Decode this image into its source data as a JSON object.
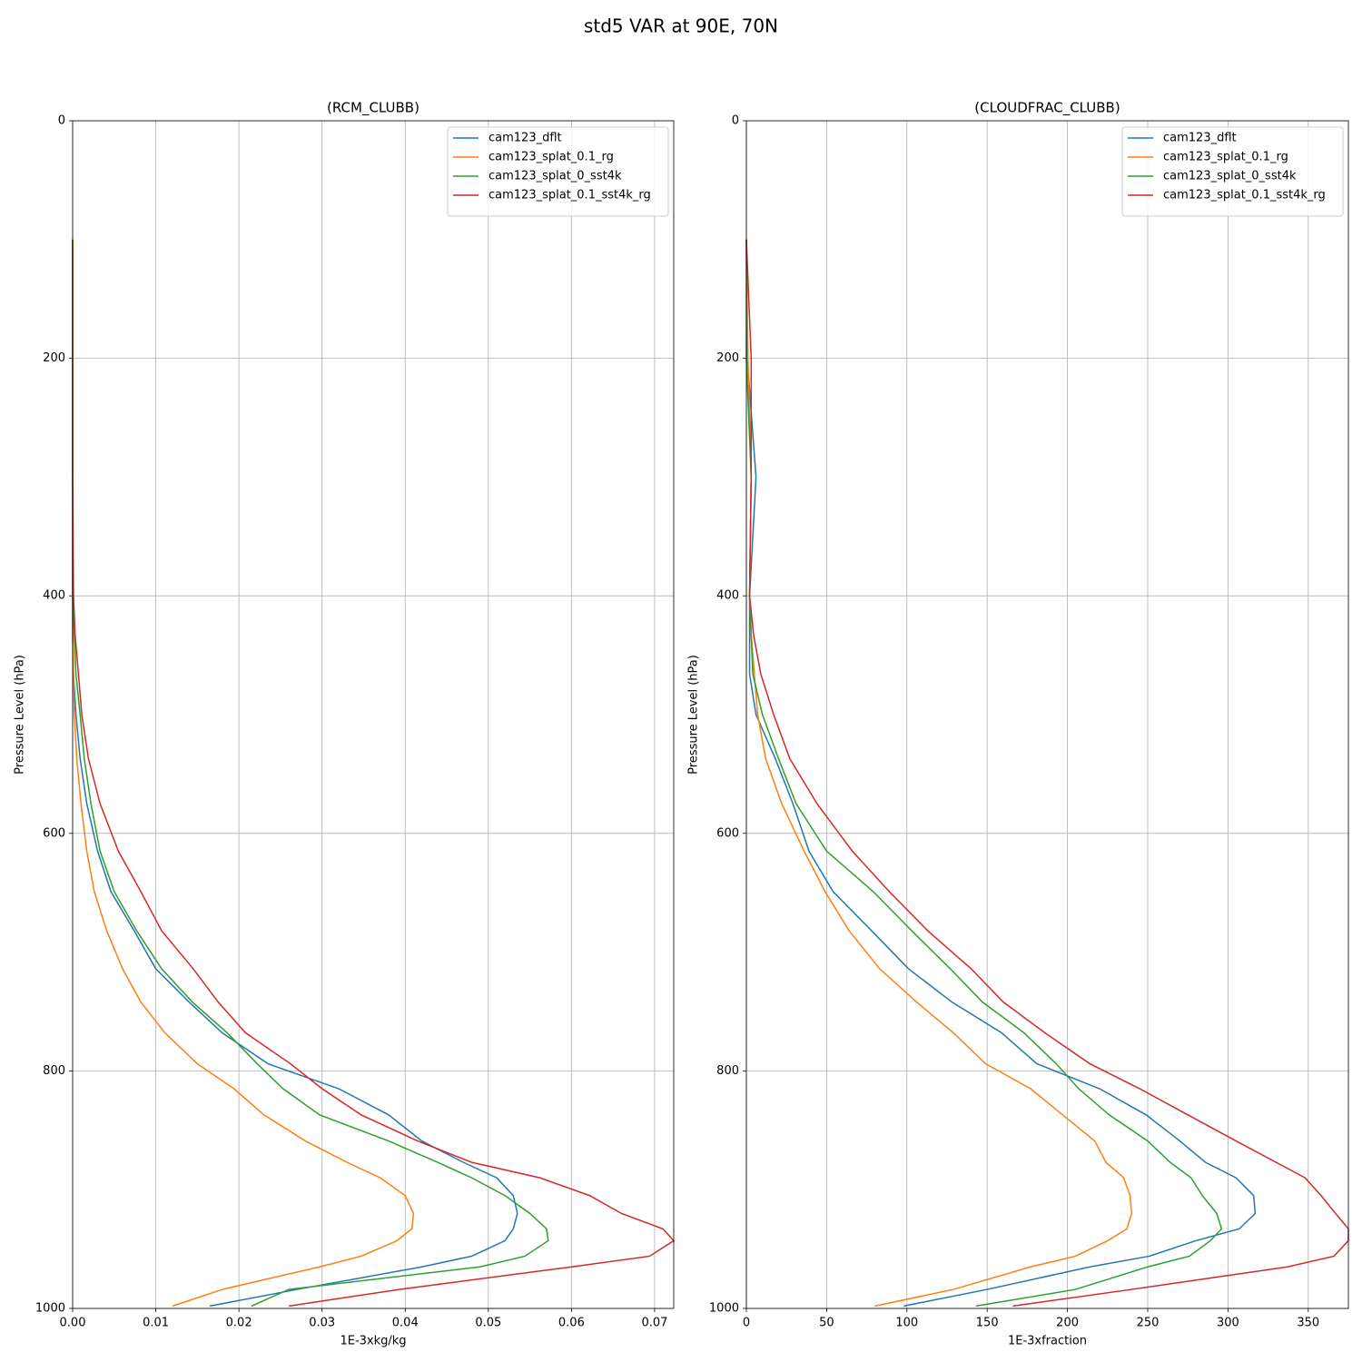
{
  "title": "std5 VAR at 90E, 70N",
  "chart_data": [
    {
      "type": "line",
      "title": "(RCM_CLUBB)",
      "xlabel": "1E-3xkg/kg",
      "ylabel": "Pressure Level (hPa)",
      "xlim": [
        0,
        0.0723
      ],
      "xticks": [
        {
          "value": 0,
          "label": "0.00"
        },
        0.01,
        0.02,
        0.03,
        0.04,
        0.05,
        0.06,
        0.07
      ],
      "ylim": [
        1000,
        0
      ],
      "yticks": [
        0,
        200,
        400,
        600,
        800,
        1000
      ],
      "grid": true,
      "legend": "upper right",
      "y": [
        100,
        200,
        300,
        400,
        433,
        466,
        500,
        537,
        575,
        615,
        649,
        682,
        714,
        742,
        768,
        794,
        815,
        837,
        859,
        877,
        890,
        905,
        920,
        933,
        943,
        956,
        965,
        984,
        998
      ],
      "series": [
        {
          "name": "cam123_dflt",
          "color": "#1f77b4",
          "values": [
            0,
            0,
            0,
            0,
            0,
            0.0001,
            0.0004,
            0.0009,
            0.0017,
            0.003,
            0.0046,
            0.0074,
            0.01,
            0.014,
            0.018,
            0.0235,
            0.032,
            0.038,
            0.042,
            0.047,
            0.051,
            0.053,
            0.0535,
            0.053,
            0.052,
            0.048,
            0.042,
            0.027,
            0.0165
          ]
        },
        {
          "name": "cam123_splat_0.1_rg",
          "color": "#ff7f0e",
          "values": [
            0,
            0,
            0,
            0,
            0,
            0.0001,
            0.0002,
            0.0005,
            0.001,
            0.0017,
            0.0026,
            0.0041,
            0.006,
            0.0082,
            0.0111,
            0.015,
            0.0194,
            0.023,
            0.028,
            0.033,
            0.037,
            0.04,
            0.041,
            0.0408,
            0.039,
            0.0347,
            0.0297,
            0.018,
            0.012
          ]
        },
        {
          "name": "cam123_splat_0_sst4k",
          "color": "#2ca02c",
          "values": [
            0,
            0,
            0,
            0,
            0.0002,
            0.0004,
            0.0009,
            0.0014,
            0.0022,
            0.0033,
            0.005,
            0.0077,
            0.0107,
            0.0144,
            0.0186,
            0.0222,
            0.0253,
            0.0297,
            0.038,
            0.0439,
            0.048,
            0.052,
            0.055,
            0.057,
            0.0572,
            0.0544,
            0.049,
            0.026,
            0.0215
          ]
        },
        {
          "name": "cam123_splat_0.1_sst4k_rg",
          "color": "#d62728",
          "values": [
            0,
            0,
            0,
            0.0001,
            0.0003,
            0.0007,
            0.0011,
            0.0019,
            0.0033,
            0.0055,
            0.0082,
            0.0107,
            0.0145,
            0.0175,
            0.0208,
            0.0262,
            0.03,
            0.0347,
            0.0415,
            0.048,
            0.0562,
            0.0622,
            0.066,
            0.071,
            0.0723,
            0.0694,
            0.06,
            0.0393,
            0.026
          ]
        }
      ]
    },
    {
      "type": "line",
      "title": "(CLOUDFRAC_CLUBB)",
      "xlabel": "1E-3xfraction",
      "ylabel": "Pressure Level (hPa)",
      "xlim": [
        0,
        375
      ],
      "xticks": [
        0,
        50,
        100,
        150,
        200,
        250,
        300,
        350
      ],
      "ylim": [
        1000,
        0
      ],
      "yticks": [
        0,
        200,
        400,
        600,
        800,
        1000
      ],
      "grid": true,
      "legend": "upper right",
      "y": [
        100,
        200,
        300,
        400,
        433,
        466,
        500,
        537,
        575,
        615,
        649,
        682,
        714,
        742,
        768,
        794,
        815,
        837,
        859,
        877,
        890,
        905,
        920,
        933,
        943,
        956,
        965,
        984,
        998
      ],
      "series": [
        {
          "name": "cam123_dflt",
          "color": "#1f77b4",
          "values": [
            0,
            0.5,
            6,
            2,
            2,
            2,
            6,
            18,
            29,
            39,
            54,
            78,
            101,
            128,
            159,
            181,
            220,
            249,
            270,
            286,
            305,
            316,
            317,
            307,
            280,
            251,
            214,
            150,
            98
          ]
        },
        {
          "name": "cam123_splat_0.1_rg",
          "color": "#ff7f0e",
          "values": [
            0,
            1,
            3,
            2,
            3,
            5,
            7,
            12,
            22,
            36,
            49,
            64,
            83,
            106,
            129,
            149,
            177,
            197,
            217,
            224,
            235,
            239,
            240,
            237,
            225,
            205,
            177,
            129,
            80
          ]
        },
        {
          "name": "cam123_splat_0_sst4k",
          "color": "#2ca02c",
          "values": [
            0,
            0,
            3,
            2,
            3,
            4,
            10,
            20,
            31,
            50,
            79,
            103,
            127,
            147,
            173,
            193,
            207,
            226,
            250,
            264,
            277,
            284,
            293,
            296,
            289,
            276,
            250,
            205,
            143
          ]
        },
        {
          "name": "cam123_splat_0.1_sst4k_rg",
          "color": "#d62728",
          "values": [
            0,
            3,
            3,
            2,
            4.5,
            9,
            17,
            27,
            44,
            66,
            89,
            113,
            140,
            160,
            186,
            214,
            245,
            275,
            305,
            330,
            348,
            358,
            367,
            375,
            375,
            366,
            337,
            240,
            166
          ]
        }
      ]
    }
  ]
}
